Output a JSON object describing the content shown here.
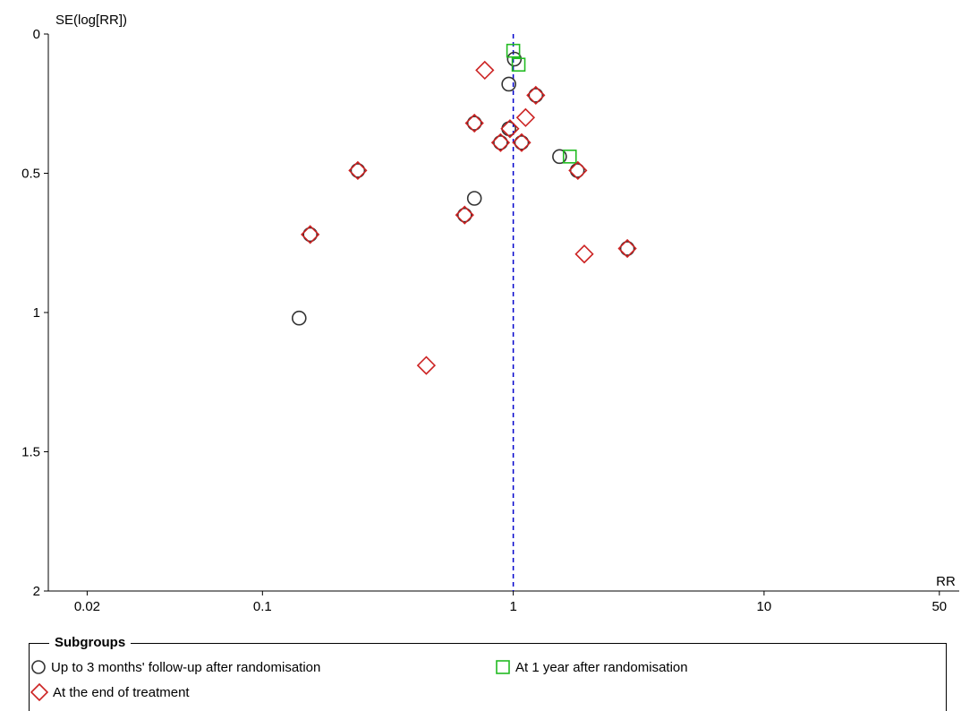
{
  "chart_data": {
    "type": "scatter",
    "title": "",
    "ylabel": "SE(log[RR])",
    "xlabel": "RR",
    "x_scale": "log",
    "xlim": [
      0.014,
      60
    ],
    "ylim": [
      0,
      2
    ],
    "y_inverted": true,
    "x_ticks": [
      0.02,
      0.1,
      1,
      10,
      50
    ],
    "x_tick_labels": [
      "0.02",
      "0.1",
      "1",
      "10",
      "50"
    ],
    "y_ticks": [
      0,
      0.5,
      1,
      1.5,
      2
    ],
    "y_tick_labels": [
      "0",
      "0.5",
      "1",
      "1.5",
      "2"
    ],
    "reference_line_x": 1,
    "grid": false,
    "legend_title": "Subgroups",
    "legend_position": "bottom",
    "series": [
      {
        "name": "Up to 3 months' follow-up after randomisation",
        "marker": "circle",
        "color": "#333333",
        "points": [
          {
            "x": 1.01,
            "y": 0.09
          },
          {
            "x": 0.96,
            "y": 0.18
          },
          {
            "x": 1.23,
            "y": 0.22
          },
          {
            "x": 0.7,
            "y": 0.32
          },
          {
            "x": 0.96,
            "y": 0.34
          },
          {
            "x": 0.89,
            "y": 0.39
          },
          {
            "x": 1.08,
            "y": 0.39
          },
          {
            "x": 1.53,
            "y": 0.44
          },
          {
            "x": 0.24,
            "y": 0.49
          },
          {
            "x": 1.8,
            "y": 0.49
          },
          {
            "x": 0.7,
            "y": 0.59
          },
          {
            "x": 0.64,
            "y": 0.65
          },
          {
            "x": 0.155,
            "y": 0.72
          },
          {
            "x": 2.85,
            "y": 0.77
          },
          {
            "x": 0.14,
            "y": 1.02
          }
        ]
      },
      {
        "name": "At 1 year after randomisation",
        "marker": "square",
        "color": "#22bb22",
        "points": [
          {
            "x": 1.0,
            "y": 0.06
          },
          {
            "x": 1.05,
            "y": 0.11
          },
          {
            "x": 1.68,
            "y": 0.44
          }
        ]
      },
      {
        "name": "At the end of treatment",
        "marker": "diamond",
        "color": "#cc2222",
        "points": [
          {
            "x": 0.77,
            "y": 0.13
          },
          {
            "x": 1.23,
            "y": 0.22
          },
          {
            "x": 1.12,
            "y": 0.3
          },
          {
            "x": 0.7,
            "y": 0.32
          },
          {
            "x": 0.97,
            "y": 0.34
          },
          {
            "x": 0.89,
            "y": 0.39
          },
          {
            "x": 1.08,
            "y": 0.39
          },
          {
            "x": 0.24,
            "y": 0.49
          },
          {
            "x": 1.81,
            "y": 0.49
          },
          {
            "x": 0.64,
            "y": 0.65
          },
          {
            "x": 0.155,
            "y": 0.72
          },
          {
            "x": 2.85,
            "y": 0.77
          },
          {
            "x": 1.92,
            "y": 0.79
          },
          {
            "x": 0.45,
            "y": 1.19
          }
        ]
      }
    ]
  }
}
